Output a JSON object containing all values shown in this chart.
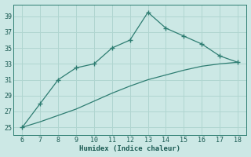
{
  "xlabel": "Humidex (Indice chaleur)",
  "x": [
    6,
    7,
    8,
    9,
    10,
    11,
    12,
    13,
    14,
    15,
    16,
    17,
    18
  ],
  "y_upper": [
    25,
    28,
    31,
    32.5,
    33,
    35,
    36,
    39.5,
    37.5,
    36.5,
    35.5,
    34,
    33.2
  ],
  "y_lower": [
    25,
    25.7,
    26.5,
    27.3,
    28.3,
    29.3,
    30.2,
    31.0,
    31.6,
    32.2,
    32.7,
    33.0,
    33.2
  ],
  "line_color": "#2e7d72",
  "bg_color": "#cce8e5",
  "grid_color": "#b0d5d0",
  "text_color": "#1a5a52",
  "xlim": [
    5.5,
    18.5
  ],
  "ylim": [
    24.0,
    40.5
  ],
  "xticks": [
    6,
    7,
    8,
    9,
    10,
    11,
    12,
    13,
    14,
    15,
    16,
    17,
    18
  ],
  "yticks": [
    25,
    27,
    29,
    31,
    33,
    35,
    37,
    39
  ]
}
